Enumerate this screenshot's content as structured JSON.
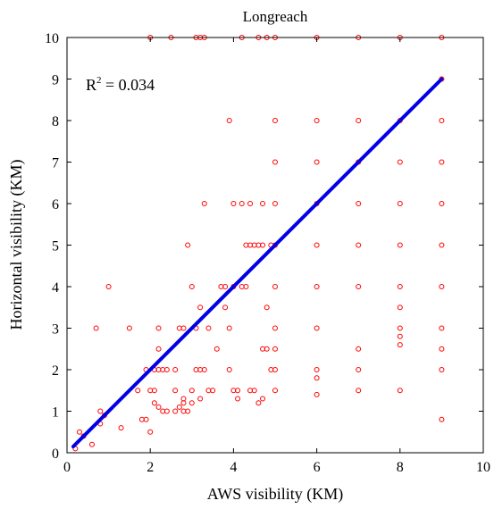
{
  "chart_data": {
    "type": "scatter",
    "title": "Longreach",
    "xlabel": "AWS visibility (KM)",
    "ylabel": "Horizontal visibility (KM)",
    "xlim": [
      0,
      10
    ],
    "ylim": [
      0,
      10
    ],
    "xticks": [
      "0",
      "2",
      "4",
      "6",
      "8",
      "10"
    ],
    "yticks": [
      "0",
      "1",
      "2",
      "3",
      "4",
      "5",
      "6",
      "7",
      "8",
      "9",
      "10"
    ],
    "grid": false,
    "annotation": {
      "r_label": "R",
      "r_exponent": "2",
      "r_value": " = 0.034"
    },
    "marker_color": "#ff0000",
    "line_color": "#0000e6",
    "fit_line": {
      "x": [
        0.15,
        9.0
      ],
      "y": [
        0.15,
        9.0
      ]
    },
    "points": [
      [
        0.2,
        0.1
      ],
      [
        0.3,
        0.5
      ],
      [
        0.4,
        0.4
      ],
      [
        0.6,
        0.2
      ],
      [
        0.7,
        3.0
      ],
      [
        0.8,
        0.7
      ],
      [
        0.8,
        1.0
      ],
      [
        0.9,
        0.9
      ],
      [
        1.0,
        4.0
      ],
      [
        1.3,
        0.6
      ],
      [
        1.5,
        3.0
      ],
      [
        1.7,
        1.5
      ],
      [
        1.8,
        0.8
      ],
      [
        1.9,
        0.8
      ],
      [
        1.9,
        2.0
      ],
      [
        2.0,
        1.5
      ],
      [
        2.0,
        0.5
      ],
      [
        2.0,
        10.0
      ],
      [
        2.1,
        2.0
      ],
      [
        2.1,
        1.5
      ],
      [
        2.1,
        1.2
      ],
      [
        2.2,
        2.0
      ],
      [
        2.2,
        1.1
      ],
      [
        2.2,
        2.5
      ],
      [
        2.2,
        3.0
      ],
      [
        2.3,
        2.0
      ],
      [
        2.3,
        1.0
      ],
      [
        2.4,
        2.0
      ],
      [
        2.4,
        1.0
      ],
      [
        2.5,
        10.0
      ],
      [
        2.6,
        1.0
      ],
      [
        2.6,
        1.5
      ],
      [
        2.6,
        2.0
      ],
      [
        2.7,
        3.0
      ],
      [
        2.7,
        1.1
      ],
      [
        2.8,
        1.2
      ],
      [
        2.8,
        1.3
      ],
      [
        2.8,
        1.0
      ],
      [
        2.8,
        3.0
      ],
      [
        2.9,
        1.0
      ],
      [
        2.9,
        5.0
      ],
      [
        3.0,
        4.0
      ],
      [
        3.0,
        1.5
      ],
      [
        3.0,
        1.2
      ],
      [
        3.1,
        2.0
      ],
      [
        3.1,
        3.0
      ],
      [
        3.1,
        10.0
      ],
      [
        3.2,
        2.0
      ],
      [
        3.2,
        3.5
      ],
      [
        3.2,
        1.3
      ],
      [
        3.2,
        10.0
      ],
      [
        3.3,
        6.0
      ],
      [
        3.3,
        2.0
      ],
      [
        3.3,
        10.0
      ],
      [
        3.4,
        1.5
      ],
      [
        3.4,
        3.0
      ],
      [
        3.5,
        1.5
      ],
      [
        3.6,
        2.5
      ],
      [
        3.7,
        4.0
      ],
      [
        3.8,
        3.5
      ],
      [
        3.8,
        4.0
      ],
      [
        3.9,
        8.0
      ],
      [
        3.9,
        2.0
      ],
      [
        3.9,
        3.0
      ],
      [
        4.0,
        4.0
      ],
      [
        4.0,
        6.0
      ],
      [
        4.0,
        1.5
      ],
      [
        4.1,
        1.5
      ],
      [
        4.1,
        1.3
      ],
      [
        4.2,
        6.0
      ],
      [
        4.2,
        4.0
      ],
      [
        4.2,
        10.0
      ],
      [
        4.3,
        5.0
      ],
      [
        4.3,
        4.0
      ],
      [
        4.4,
        5.0
      ],
      [
        4.4,
        6.0
      ],
      [
        4.4,
        1.5
      ],
      [
        4.5,
        5.0
      ],
      [
        4.5,
        1.5
      ],
      [
        4.6,
        5.0
      ],
      [
        4.6,
        1.2
      ],
      [
        4.6,
        10.0
      ],
      [
        4.7,
        5.0
      ],
      [
        4.7,
        1.3
      ],
      [
        4.7,
        6.0
      ],
      [
        4.7,
        2.5
      ],
      [
        4.8,
        2.5
      ],
      [
        4.8,
        3.5
      ],
      [
        4.8,
        10.0
      ],
      [
        4.9,
        2.0
      ],
      [
        4.9,
        5.0
      ],
      [
        5.0,
        2.0
      ],
      [
        5.0,
        3.0
      ],
      [
        5.0,
        4.0
      ],
      [
        5.0,
        5.0
      ],
      [
        5.0,
        6.0
      ],
      [
        5.0,
        7.0
      ],
      [
        5.0,
        8.0
      ],
      [
        5.0,
        10.0
      ],
      [
        5.0,
        1.5
      ],
      [
        5.0,
        2.5
      ],
      [
        6.0,
        1.4
      ],
      [
        6.0,
        1.8
      ],
      [
        6.0,
        2.0
      ],
      [
        6.0,
        3.0
      ],
      [
        6.0,
        4.0
      ],
      [
        6.0,
        5.0
      ],
      [
        6.0,
        6.0
      ],
      [
        6.0,
        7.0
      ],
      [
        6.0,
        8.0
      ],
      [
        6.0,
        10.0
      ],
      [
        7.0,
        1.5
      ],
      [
        7.0,
        2.0
      ],
      [
        7.0,
        2.5
      ],
      [
        7.0,
        4.0
      ],
      [
        7.0,
        5.0
      ],
      [
        7.0,
        6.0
      ],
      [
        7.0,
        7.0
      ],
      [
        7.0,
        8.0
      ],
      [
        7.0,
        10.0
      ],
      [
        8.0,
        1.5
      ],
      [
        8.0,
        2.6
      ],
      [
        8.0,
        2.8
      ],
      [
        8.0,
        3.0
      ],
      [
        8.0,
        3.5
      ],
      [
        8.0,
        4.0
      ],
      [
        8.0,
        5.0
      ],
      [
        8.0,
        6.0
      ],
      [
        8.0,
        7.0
      ],
      [
        8.0,
        8.0
      ],
      [
        8.0,
        10.0
      ],
      [
        9.0,
        0.8
      ],
      [
        9.0,
        2.0
      ],
      [
        9.0,
        2.5
      ],
      [
        9.0,
        3.0
      ],
      [
        9.0,
        4.0
      ],
      [
        9.0,
        5.0
      ],
      [
        9.0,
        6.0
      ],
      [
        9.0,
        7.0
      ],
      [
        9.0,
        8.0
      ],
      [
        9.0,
        9.0
      ],
      [
        9.0,
        10.0
      ]
    ]
  }
}
